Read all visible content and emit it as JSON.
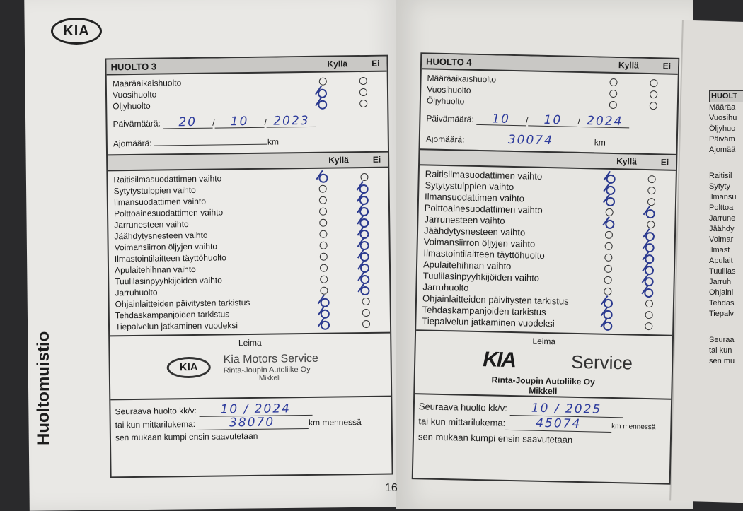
{
  "brand": "KIA",
  "side_title": "Huoltomuistio",
  "page_number": "16",
  "columns": {
    "yes": "Kyllä",
    "no": "Ei"
  },
  "labels": {
    "maintenance": [
      "Määräaikaishuolto",
      "Vuosihuolto",
      "Öljyhuolto"
    ],
    "date": "Päivämäärä:",
    "mileage": "Ajomäärä:",
    "km": "km",
    "stamp": "Leima",
    "next_service": "Seuraava huolto kk/v:",
    "or_odometer": "tai kun mittarilukema:",
    "km_by": "km mennessä",
    "whichever": "sen mukaan kumpi ensin saavutetaan",
    "checklist": [
      "Raitisilmasuodattimen vaihto",
      "Sytytystulppien vaihto",
      "Ilmansuodattimen vaihto",
      "Polttoainesuodattimen vaihto",
      "Jarrunesteen vaihto",
      "Jäähdytysnesteen vaihto",
      "Voimansiirron öljyjen vaihto",
      "Ilmastointilaitteen täyttöhuolto",
      "Apulaitehihnan vaihto",
      "Tuulilasinpyyhkijöiden vaihto",
      "Jarruhuolto",
      "Ohjainlaitteiden päivitysten tarkistus",
      "Tehdaskampanjoiden tarkistus",
      "Tiepalvelun jatkaminen vuodeksi"
    ]
  },
  "huolto3": {
    "title": "HUOLTO 3",
    "maintenance_checks": [
      "none",
      "yes",
      "yes"
    ],
    "date": [
      "20",
      "10",
      "2023"
    ],
    "mileage": "",
    "checklist_checks": [
      "yes",
      "no",
      "no",
      "no",
      "no",
      "no",
      "no",
      "no",
      "no",
      "no",
      "no",
      "yes",
      "yes",
      "yes"
    ],
    "stamp_line1": "Kia Motors Service",
    "stamp_line2": "Rinta-Joupin Autoliike Oy",
    "stamp_line3": "Mikkeli",
    "next_date": "10 / 2024",
    "next_km": "38070"
  },
  "huolto4": {
    "title": "HUOLTO 4",
    "maintenance_checks": [
      "none",
      "none",
      "none"
    ],
    "date": [
      "10",
      "10",
      "2024"
    ],
    "mileage": "30074",
    "checklist_checks": [
      "yes",
      "yes",
      "yes",
      "no",
      "yes",
      "no",
      "no",
      "no",
      "no",
      "no",
      "no",
      "yes",
      "yes",
      "yes"
    ],
    "stamp_service": "Service",
    "stamp_line2": "Rinta-Joupin Autoliike Oy",
    "stamp_line3": "Mikkeli",
    "next_date": "10 / 2025",
    "next_km": "45074"
  },
  "next_page_fragments": [
    "HUOLT",
    "Määräa",
    "Vuosihu",
    "Öljyhuo",
    "Päiväm",
    "Ajomää",
    "Raitisil",
    "Sytyty",
    "Ilmansu",
    "Polttoa",
    "Jarrune",
    "Jäähdy",
    "Voimar",
    "Ilmast",
    "Apulait",
    "Tuulilas",
    "Jarruh",
    "Ohjainl",
    "Tehdas",
    "Tiepalv",
    "Seuraa",
    "tai kun",
    "sen mu"
  ],
  "colors": {
    "ink": "#2d3b9c",
    "header": "#c9c8c5",
    "paper": "#e9e8e5"
  }
}
